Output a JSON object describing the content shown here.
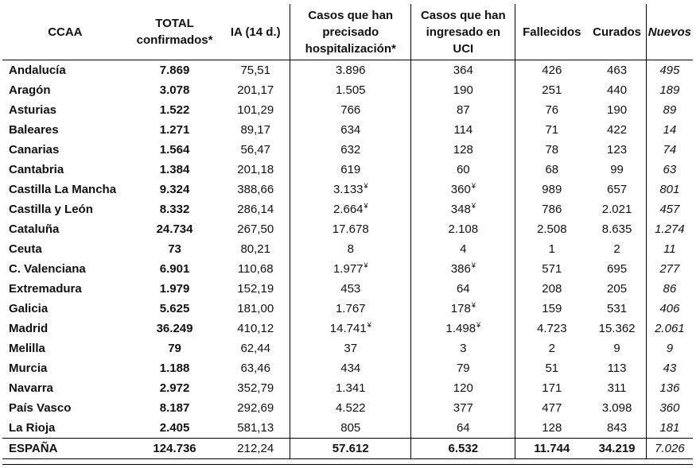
{
  "headers": {
    "ccaa": "CCAA",
    "total": [
      "TOTAL",
      "confirmados*"
    ],
    "ia": "IA (14 d.)",
    "hosp": [
      "Casos que han",
      "precisado",
      "hospitalización*"
    ],
    "uci": [
      "Casos que han",
      "ingresado en",
      "UCI"
    ],
    "fallecidos": "Fallecidos",
    "curados": "Curados",
    "nuevos": "Nuevos"
  },
  "footnote_mark": "¥",
  "rows": [
    {
      "ccaa": "Andalucía",
      "total": "7.869",
      "ia": "75,51",
      "hosp": "3.896",
      "hosp_mark": "",
      "uci": "364",
      "uci_mark": "",
      "fallecidos": "426",
      "curados": "463",
      "nuevos": "495"
    },
    {
      "ccaa": "Aragón",
      "total": "3.078",
      "ia": "201,17",
      "hosp": "1.505",
      "hosp_mark": "",
      "uci": "190",
      "uci_mark": "",
      "fallecidos": "251",
      "curados": "440",
      "nuevos": "189"
    },
    {
      "ccaa": "Asturias",
      "total": "1.522",
      "ia": "101,29",
      "hosp": "766",
      "hosp_mark": "",
      "uci": "87",
      "uci_mark": "",
      "fallecidos": "76",
      "curados": "190",
      "nuevos": "89"
    },
    {
      "ccaa": "Baleares",
      "total": "1.271",
      "ia": "89,17",
      "hosp": "634",
      "hosp_mark": "",
      "uci": "114",
      "uci_mark": "",
      "fallecidos": "71",
      "curados": "422",
      "nuevos": "14"
    },
    {
      "ccaa": "Canarias",
      "total": "1.564",
      "ia": "56,47",
      "hosp": "632",
      "hosp_mark": "",
      "uci": "128",
      "uci_mark": "",
      "fallecidos": "78",
      "curados": "123",
      "nuevos": "74"
    },
    {
      "ccaa": "Cantabria",
      "total": "1.384",
      "ia": "201,18",
      "hosp": "619",
      "hosp_mark": "",
      "uci": "60",
      "uci_mark": "",
      "fallecidos": "68",
      "curados": "99",
      "nuevos": "63"
    },
    {
      "ccaa": "Castilla La Mancha",
      "total": "9.324",
      "ia": "388,66",
      "hosp": "3.133",
      "hosp_mark": "¥",
      "uci": "360",
      "uci_mark": "¥",
      "fallecidos": "989",
      "curados": "657",
      "nuevos": "801"
    },
    {
      "ccaa": "Castilla y León",
      "total": "8.332",
      "ia": "286,14",
      "hosp": "2.664",
      "hosp_mark": "¥",
      "uci": "348",
      "uci_mark": "¥",
      "fallecidos": "786",
      "curados": "2.021",
      "nuevos": "457"
    },
    {
      "ccaa": "Cataluña",
      "total": "24.734",
      "ia": "267,50",
      "hosp": "17.678",
      "hosp_mark": "",
      "uci": "2.108",
      "uci_mark": "",
      "fallecidos": "2.508",
      "curados": "8.635",
      "nuevos": "1.274"
    },
    {
      "ccaa": "Ceuta",
      "total": "73",
      "ia": "80,21",
      "hosp": "8",
      "hosp_mark": "",
      "uci": "4",
      "uci_mark": "",
      "fallecidos": "1",
      "curados": "2",
      "nuevos": "11"
    },
    {
      "ccaa": "C. Valenciana",
      "total": "6.901",
      "ia": "110,68",
      "hosp": "1.977",
      "hosp_mark": "¥",
      "uci": "386",
      "uci_mark": "¥",
      "fallecidos": "571",
      "curados": "695",
      "nuevos": "277"
    },
    {
      "ccaa": "Extremadura",
      "total": "1.979",
      "ia": "152,19",
      "hosp": "453",
      "hosp_mark": "",
      "uci": "64",
      "uci_mark": "",
      "fallecidos": "208",
      "curados": "205",
      "nuevos": "86"
    },
    {
      "ccaa": "Galicia",
      "total": "5.625",
      "ia": "181,00",
      "hosp": "1.767",
      "hosp_mark": "",
      "uci": "178",
      "uci_mark": "¥",
      "fallecidos": "159",
      "curados": "531",
      "nuevos": "406"
    },
    {
      "ccaa": "Madrid",
      "total": "36.249",
      "ia": "410,12",
      "hosp": "14.741",
      "hosp_mark": "¥",
      "uci": "1.498",
      "uci_mark": "¥",
      "fallecidos": "4.723",
      "curados": "15.362",
      "nuevos": "2.061"
    },
    {
      "ccaa": "Melilla",
      "total": "79",
      "ia": "62,44",
      "hosp": "37",
      "hosp_mark": "",
      "uci": "3",
      "uci_mark": "",
      "fallecidos": "2",
      "curados": "9",
      "nuevos": "9"
    },
    {
      "ccaa": "Murcia",
      "total": "1.188",
      "ia": "63,46",
      "hosp": "434",
      "hosp_mark": "",
      "uci": "79",
      "uci_mark": "",
      "fallecidos": "51",
      "curados": "113",
      "nuevos": "43"
    },
    {
      "ccaa": "Navarra",
      "total": "2.972",
      "ia": "352,79",
      "hosp": "1.341",
      "hosp_mark": "",
      "uci": "120",
      "uci_mark": "",
      "fallecidos": "171",
      "curados": "311",
      "nuevos": "136"
    },
    {
      "ccaa": "País Vasco",
      "total": "8.187",
      "ia": "292,69",
      "hosp": "4.522",
      "hosp_mark": "",
      "uci": "377",
      "uci_mark": "",
      "fallecidos": "477",
      "curados": "3.098",
      "nuevos": "360"
    },
    {
      "ccaa": "La Rioja",
      "total": "2.405",
      "ia": "581,13",
      "hosp": "805",
      "hosp_mark": "",
      "uci": "64",
      "uci_mark": "",
      "fallecidos": "128",
      "curados": "843",
      "nuevos": "181"
    }
  ],
  "total_row": {
    "ccaa": "ESPAÑA",
    "total": "124.736",
    "ia": "212,24",
    "hosp": "57.612",
    "uci": "6.532",
    "fallecidos": "11.744",
    "curados": "34.219",
    "nuevos": "7.026"
  }
}
